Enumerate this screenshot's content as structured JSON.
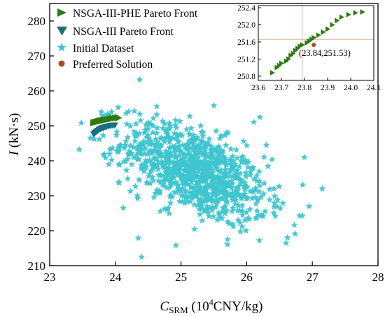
{
  "chart_data": [
    {
      "type": "scatter",
      "title": "",
      "xlabel_main": "C",
      "xlabel_sub": "SRM",
      "xlabel_unit": " (10",
      "xlabel_sup": "4",
      "xlabel_tail": "CNY/kg)",
      "ylabel_main": "I",
      "ylabel_unit": " (kN·s)",
      "xlim": [
        23,
        28
      ],
      "ylim": [
        210,
        285
      ],
      "x_ticks": [
        23,
        24,
        25,
        26,
        27,
        28
      ],
      "y_ticks": [
        210,
        220,
        230,
        240,
        250,
        260,
        270,
        280
      ],
      "legend_position": "top-left",
      "series": [
        {
          "name": "NSGA-III-PHE Pareto Front",
          "marker": "triangle-right",
          "color": "#2e7a12",
          "x": [
            23.66,
            23.68,
            23.69,
            23.7,
            23.72,
            23.73,
            23.74,
            23.75,
            23.76,
            23.77,
            23.78,
            23.79,
            23.81,
            23.82,
            23.83,
            23.84,
            23.86,
            23.88,
            23.9,
            23.92,
            23.94,
            23.96,
            23.99,
            24.02,
            24.05
          ],
          "y": [
            250.88,
            251.0,
            251.05,
            251.1,
            251.15,
            251.2,
            251.28,
            251.33,
            251.4,
            251.45,
            251.5,
            251.53,
            251.58,
            251.62,
            251.66,
            251.7,
            251.76,
            251.83,
            251.9,
            252.0,
            252.1,
            252.18,
            252.24,
            252.28,
            252.3
          ]
        },
        {
          "name": "NSGA-III Pareto Front",
          "marker": "triangle-down",
          "color": "#1a6f80",
          "x": [
            23.67,
            23.69,
            23.71,
            23.73,
            23.75,
            23.77,
            23.79,
            23.81,
            23.83,
            23.85,
            23.87,
            23.9,
            23.93,
            23.96,
            23.99
          ],
          "y": [
            247.6,
            248.0,
            248.3,
            248.6,
            248.9,
            249.1,
            249.3,
            249.4,
            249.55,
            249.7,
            249.8,
            249.9,
            250.0,
            250.1,
            250.15
          ]
        },
        {
          "name": "Initial Dataset",
          "marker": "star",
          "color": "#3fc5cf",
          "cloud": {
            "count": 1000,
            "center": [
              25.2,
              237
            ],
            "sd_x": 0.55,
            "sd_y": 7.2,
            "correlation": -0.55,
            "x_range": [
              23.4,
              27.2
            ],
            "y_range": [
              214,
              264
            ]
          },
          "x": [
            24.37,
            23.45,
            26.88,
            27.15,
            24.4,
            26.3,
            25.5,
            23.62,
            26.2,
            26.95,
            25.3,
            23.9,
            24.12,
            26.6,
            26.62
          ],
          "y": [
            263.2,
            243.2,
            241.0,
            232.0,
            212.5,
            244.5,
            255.8,
            246.5,
            252.5,
            227.0,
            250.0,
            239.0,
            226.5,
            216.5,
            218.0
          ]
        },
        {
          "name": "Preferred Solution",
          "marker": "circle",
          "color": "#b5441e",
          "x": [
            23.84
          ],
          "y": [
            251.53
          ]
        }
      ]
    },
    {
      "type": "scatter",
      "role": "inset",
      "xlim": [
        23.6,
        24.1
      ],
      "ylim": [
        250.7,
        252.45
      ],
      "x_ticks": [
        "23.6",
        "23.7",
        "23.8",
        "23.9",
        "24.0",
        "24.1"
      ],
      "y_ticks": [
        "250.8",
        "251.2",
        "251.6",
        "252.0",
        "252.4"
      ],
      "annotation": "(23.84,251.53)",
      "crosshair": {
        "x": 23.79,
        "y": 251.66,
        "color": "#e0b49a"
      }
    }
  ]
}
